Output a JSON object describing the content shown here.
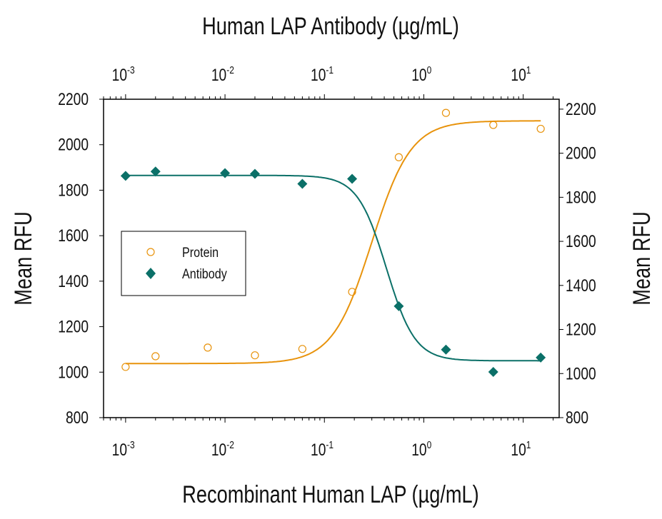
{
  "chart_data": {
    "type": "scatter",
    "title": "Human LAP Antibody (µg/mL)",
    "xlabel": "Recombinant Human LAP (µg/mL)",
    "ylabel": "Mean RFU",
    "y2label": "Mean RFU",
    "x_scale": "log",
    "xlim": [
      0.0006,
      23
    ],
    "x_ticks": [
      {
        "base": "10",
        "exp": "-3"
      },
      {
        "base": "10",
        "exp": "-2"
      },
      {
        "base": "10",
        "exp": "-1"
      },
      {
        "base": "10",
        "exp": "0"
      },
      {
        "base": "10",
        "exp": "1"
      }
    ],
    "ylim": [
      800,
      2200
    ],
    "y_ticks": [
      "800",
      "1000",
      "1200",
      "1400",
      "1600",
      "1800",
      "2000",
      "2200"
    ],
    "y2lim": [
      800,
      2245
    ],
    "y2_ticks": [
      "800",
      "1000",
      "1200",
      "1400",
      "1600",
      "1800",
      "2000",
      "2200"
    ],
    "grid": false,
    "legend_position": "middle-left",
    "series": [
      {
        "name": "Protein",
        "marker": "open-circle",
        "color": "#e8930c",
        "x": [
          0.001,
          0.002,
          0.0067,
          0.02,
          0.06,
          0.19,
          0.56,
          1.67,
          5,
          15
        ],
        "y": [
          1023,
          1070,
          1108,
          1074,
          1102,
          1353,
          1945,
          2140,
          2087,
          2070
        ],
        "fit": {
          "bottom": 1038,
          "top": 2105,
          "ec50": 0.3,
          "hill": 2.2
        }
      },
      {
        "name": "Antibody",
        "marker": "filled-diamond",
        "color": "#0b7068",
        "x": [
          0.001,
          0.002,
          0.01,
          0.02,
          0.06,
          0.19,
          0.56,
          1.67,
          5,
          15
        ],
        "y": [
          1863,
          1882,
          1875,
          1872,
          1828,
          1850,
          1290,
          1099,
          1001,
          1064
        ],
        "fit": {
          "top": 1865,
          "bottom": 1050,
          "ic50": 0.42,
          "hill": 3
        }
      }
    ]
  }
}
